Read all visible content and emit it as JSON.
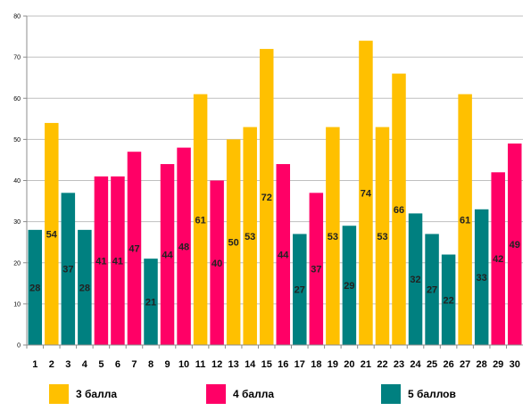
{
  "chart_data": {
    "type": "bar",
    "categories": [
      "1",
      "2",
      "3",
      "4",
      "5",
      "6",
      "7",
      "8",
      "9",
      "10",
      "11",
      "12",
      "13",
      "14",
      "15",
      "16",
      "17",
      "18",
      "19",
      "20",
      "21",
      "22",
      "23",
      "24",
      "25",
      "26",
      "27",
      "28",
      "29",
      "30"
    ],
    "values": [
      28,
      54,
      37,
      28,
      41,
      41,
      47,
      21,
      44,
      48,
      61,
      40,
      50,
      53,
      72,
      44,
      27,
      37,
      53,
      29,
      74,
      53,
      66,
      32,
      27,
      22,
      61,
      33,
      42,
      49
    ],
    "groups": [
      "5",
      "3",
      "5",
      "5",
      "4",
      "4",
      "4",
      "5",
      "4",
      "4",
      "3",
      "4",
      "3",
      "3",
      "3",
      "4",
      "5",
      "4",
      "3",
      "5",
      "3",
      "3",
      "3",
      "5",
      "5",
      "5",
      "3",
      "5",
      "4",
      "4"
    ],
    "series": [
      {
        "key": "3",
        "name": "3 балла",
        "color": "#FFC000"
      },
      {
        "key": "4",
        "name": "4 балла",
        "color": "#FF0066"
      },
      {
        "key": "5",
        "name": "5 баллов",
        "color": "#008080"
      }
    ],
    "yticks": [
      0,
      10,
      20,
      30,
      40,
      50,
      60,
      70,
      80
    ],
    "ylim": [
      0,
      80
    ],
    "grid": true,
    "legend_position": "bottom",
    "data_labels": true
  }
}
